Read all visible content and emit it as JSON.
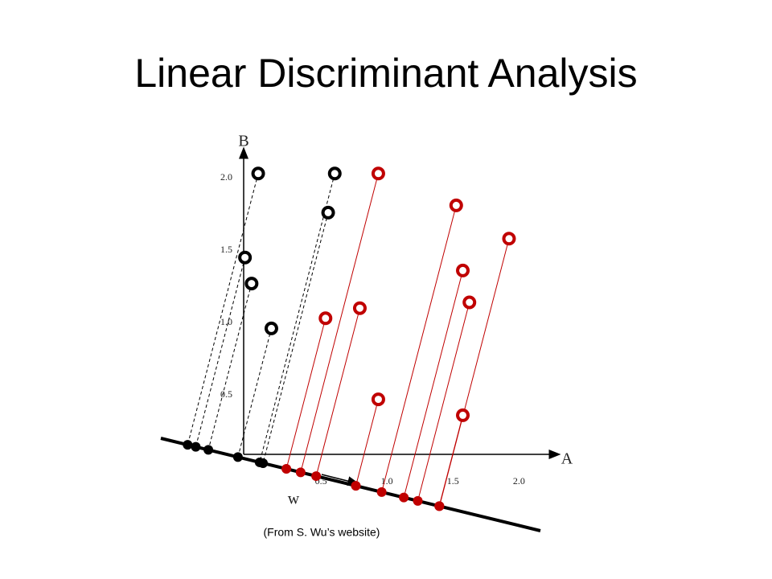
{
  "chart_data": {
    "type": "scatter",
    "title": "Linear Discriminant Analysis",
    "x_label": "A",
    "y_label": "B",
    "projection_label": "w",
    "source": "(From S. Wu’s website)",
    "xlim": [
      0,
      2.4
    ],
    "ylim": [
      0,
      2.1
    ],
    "xticks": [
      0.5,
      {
        "value": 1,
        "label": "1.0"
      },
      1.5,
      {
        "value": 2,
        "label": "2.0"
      }
    ],
    "yticks": [
      0.5,
      {
        "value": 1,
        "label": "1.0"
      },
      1.5,
      {
        "value": 2,
        "label": "2.0"
      }
    ],
    "grid": false,
    "series": [
      {
        "color": "#000000",
        "line_style": "dashed",
        "x": [
          0.11,
          0.69,
          0.64,
          0.01,
          0.06,
          0.21
        ],
        "values": [
          1.94,
          1.94,
          1.67,
          1.36,
          1.18,
          0.87
        ]
      },
      {
        "color": "#c00000",
        "line_style": "solid",
        "x": [
          1.02,
          1.61,
          2.01,
          1.66,
          1.71,
          0.62,
          0.88,
          1.02,
          1.66
        ],
        "values": [
          1.94,
          1.72,
          1.49,
          1.27,
          1.05,
          0.94,
          1.01,
          0.38,
          0.27
        ]
      }
    ]
  }
}
